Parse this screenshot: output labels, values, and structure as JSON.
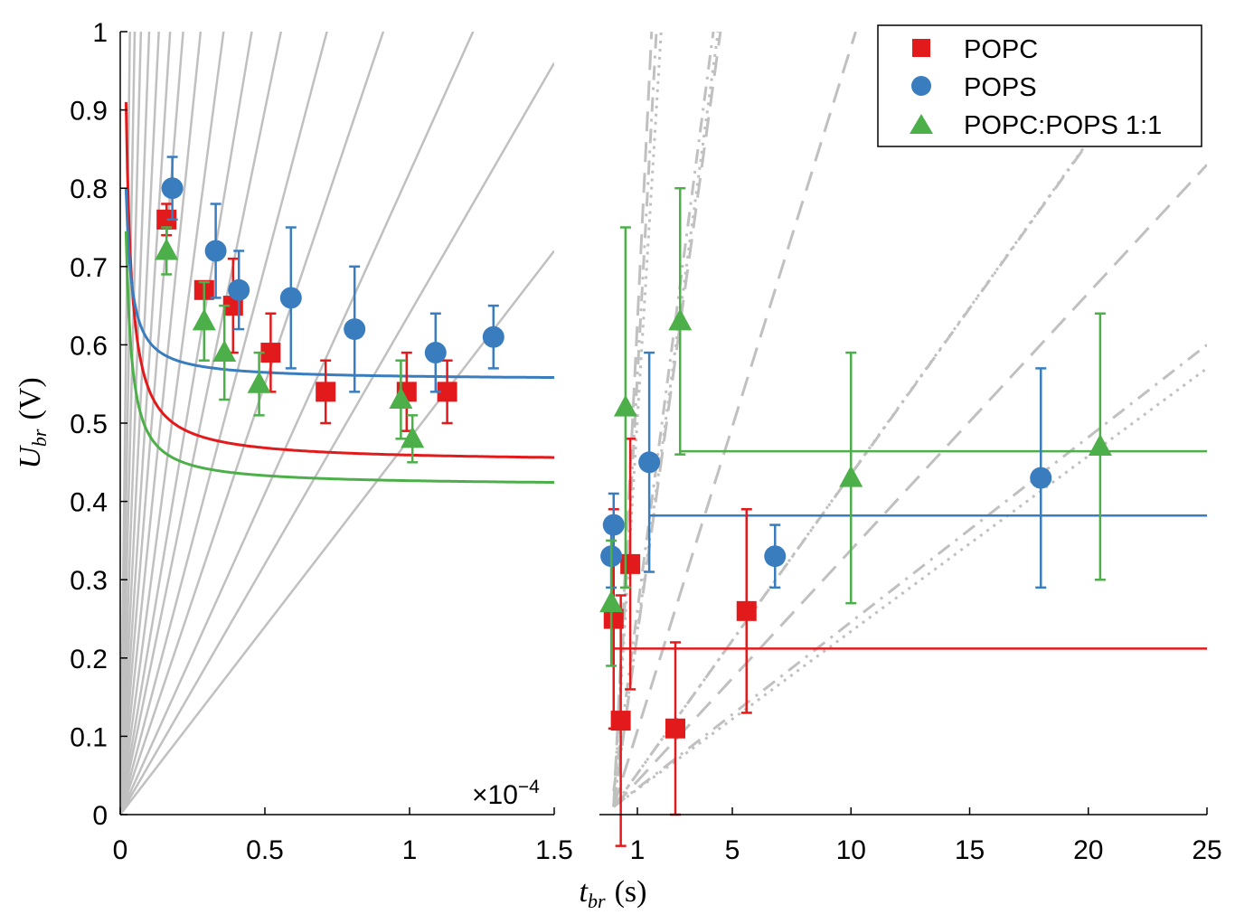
{
  "colors": {
    "popc": "#e31a1c",
    "pops": "#3a7dbf",
    "mix": "#4daf4a",
    "guide": "#c0c0c0",
    "axis": "#000000"
  },
  "legend": [
    "POPC",
    "POPS",
    "POPC:POPS 1:1"
  ],
  "chart_data": [
    {
      "type": "scatter",
      "panel": "left",
      "xlim": [
        0,
        1.5
      ],
      "ylim": [
        0,
        1
      ],
      "x_multiplier_label": "×10",
      "x_multiplier_exponent": "−4",
      "xticks": [
        "0",
        "0.5",
        "1",
        "1.5"
      ],
      "yticks": [
        "0",
        "0.1",
        "0.2",
        "0.3",
        "0.4",
        "0.5",
        "0.6",
        "0.7",
        "0.8",
        "0.9",
        "1"
      ],
      "ylabel": {
        "symbol": "U",
        "sub": "br",
        "unit": "(V)"
      },
      "guide_line_slopes": [
        30,
        20,
        14,
        10,
        7.5,
        5.8,
        4.6,
        3.6,
        2.8,
        2.2,
        1.8,
        1.4,
        1.1,
        0.82,
        0.64,
        0.48
      ],
      "series": [
        {
          "name": "POPC",
          "marker": "square",
          "points": [
            [
              0.16,
              0.76,
              0.02
            ],
            [
              0.29,
              0.67,
              0.01
            ],
            [
              0.39,
              0.65,
              0.06
            ],
            [
              0.52,
              0.59,
              0.05
            ],
            [
              0.71,
              0.54,
              0.04
            ],
            [
              0.99,
              0.54,
              0.05
            ],
            [
              1.13,
              0.54,
              0.04
            ]
          ],
          "fit": {
            "a": 0.45,
            "b": 0.0092
          }
        },
        {
          "name": "POPS",
          "marker": "circle",
          "points": [
            [
              0.18,
              0.8,
              0.04
            ],
            [
              0.33,
              0.72,
              0.06
            ],
            [
              0.41,
              0.67,
              0.05
            ],
            [
              0.59,
              0.66,
              0.09
            ],
            [
              0.81,
              0.62,
              0.08
            ],
            [
              1.09,
              0.59,
              0.05
            ],
            [
              1.29,
              0.61,
              0.04
            ]
          ],
          "fit": {
            "a": 0.555,
            "b": 0.0049
          }
        },
        {
          "name": "POPC:POPS 1:1",
          "marker": "triangle",
          "points": [
            [
              0.16,
              0.72,
              0.03
            ],
            [
              0.29,
              0.63,
              0.05
            ],
            [
              0.36,
              0.59,
              0.06
            ],
            [
              0.48,
              0.55,
              0.04
            ],
            [
              0.97,
              0.53,
              0.05
            ],
            [
              1.01,
              0.48,
              0.03
            ]
          ],
          "fit": {
            "a": 0.42,
            "b": 0.0065
          }
        }
      ]
    },
    {
      "type": "scatter",
      "panel": "right",
      "xlim": [
        0,
        25
      ],
      "ylim": [
        0,
        1
      ],
      "xticks": [
        "1",
        "5",
        "10",
        "15",
        "20",
        "25"
      ],
      "xlabel": {
        "symbol": "t",
        "sub": "br",
        "unit": "(s)"
      },
      "guide_lines": [
        {
          "style": "dashed",
          "from": [
            0,
            0.01
          ],
          "to": [
            4.5,
            1.0
          ]
        },
        {
          "style": "dashed",
          "from": [
            0,
            0.01
          ],
          "to": [
            10.2,
            1.0
          ]
        },
        {
          "style": "dashed",
          "from": [
            0,
            0.01
          ],
          "to": [
            25,
            0.83
          ]
        },
        {
          "style": "dashed",
          "from": [
            0,
            0.01
          ],
          "to": [
            1.6,
            1.0
          ]
        },
        {
          "style": "dashdot",
          "from": [
            0,
            0.01
          ],
          "to": [
            25,
            0.6
          ]
        },
        {
          "style": "dashdot",
          "from": [
            0,
            0.01
          ],
          "to": [
            20.5,
            0.88
          ]
        },
        {
          "style": "dashdot",
          "from": [
            0,
            0.01
          ],
          "to": [
            1.8,
            1.0
          ]
        },
        {
          "style": "dashdot",
          "from": [
            0,
            0.03
          ],
          "to": [
            4.2,
            1.0
          ]
        },
        {
          "style": "dotted",
          "from": [
            0,
            0.01
          ],
          "to": [
            25,
            0.57
          ]
        },
        {
          "style": "dotted",
          "from": [
            0,
            0.01
          ],
          "to": [
            20,
            0.86
          ]
        },
        {
          "style": "dotted",
          "from": [
            0,
            0.01
          ],
          "to": [
            2.0,
            1.0
          ]
        },
        {
          "style": "dotted",
          "from": [
            0,
            0.01
          ],
          "to": [
            4.4,
            1.0
          ]
        }
      ],
      "series": [
        {
          "name": "POPC",
          "marker": "square",
          "points": [
            [
              0.0,
              0.25,
              0.14
            ],
            [
              0.3,
              0.12,
              0.16
            ],
            [
              0.7,
              0.32,
              0.16
            ],
            [
              2.6,
              0.11,
              0.11
            ],
            [
              5.6,
              0.26,
              0.13
            ]
          ],
          "level": 0.212,
          "level_from": 0.0
        },
        {
          "name": "POPS",
          "marker": "circle",
          "points": [
            [
              -0.1,
              0.33,
              0.04
            ],
            [
              0.0,
              0.37,
              0.04
            ],
            [
              1.5,
              0.45,
              0.14
            ],
            [
              6.8,
              0.33,
              0.04
            ],
            [
              18.0,
              0.43,
              0.14
            ]
          ],
          "level": 0.382,
          "level_from": 1.5
        },
        {
          "name": "POPC:POPS 1:1",
          "marker": "triangle",
          "points": [
            [
              -0.1,
              0.27,
              0.08
            ],
            [
              0.5,
              0.52,
              0.23
            ],
            [
              2.8,
              0.63,
              0.17
            ],
            [
              10.0,
              0.43,
              0.16
            ],
            [
              20.5,
              0.47,
              0.17
            ]
          ],
          "level": 0.464,
          "level_from": 2.8
        }
      ]
    }
  ]
}
